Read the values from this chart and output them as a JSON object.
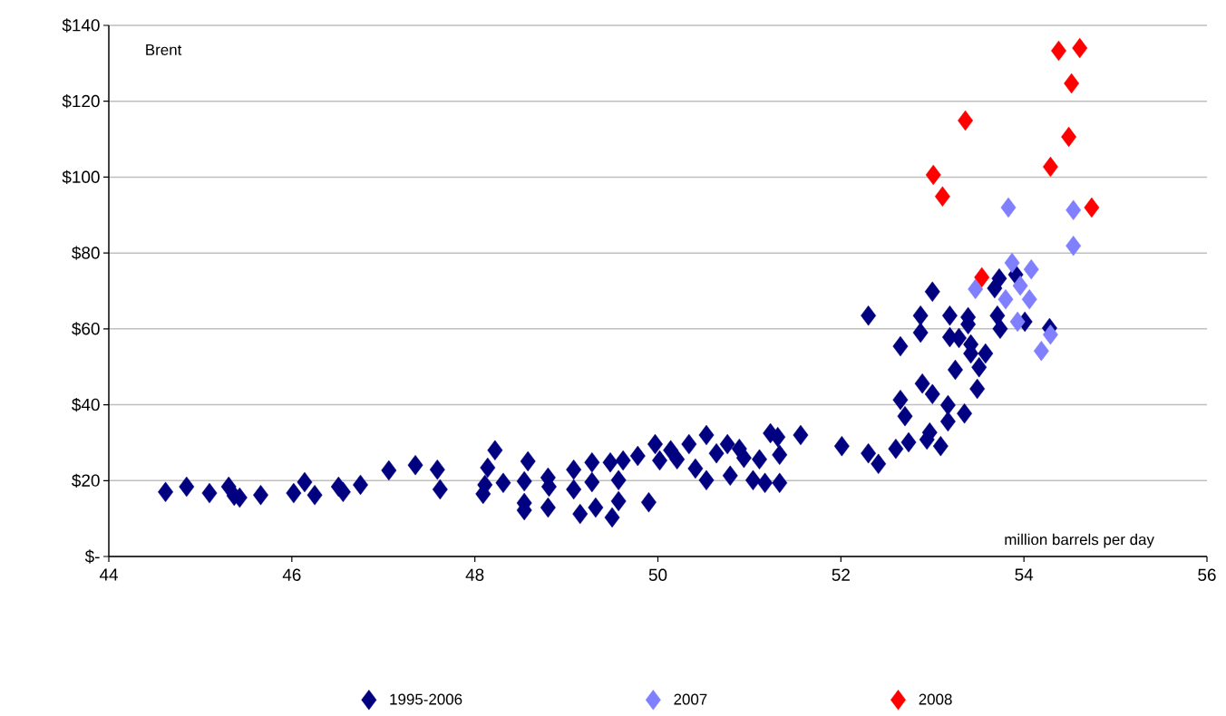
{
  "chart_data": {
    "type": "scatter",
    "xlabel": "million barrels per day",
    "annotations": [
      "Brent"
    ],
    "xlim": [
      44,
      56
    ],
    "xticks": [
      44,
      46,
      48,
      50,
      52,
      54,
      56
    ],
    "ylim": [
      0,
      140
    ],
    "yticks": [
      {
        "value": 0,
        "label": "$-"
      },
      {
        "value": 20,
        "label": "$20"
      },
      {
        "value": 40,
        "label": "$40"
      },
      {
        "value": 60,
        "label": "$60"
      },
      {
        "value": 80,
        "label": "$80"
      },
      {
        "value": 100,
        "label": "$100"
      },
      {
        "value": 120,
        "label": "$120"
      },
      {
        "value": 140,
        "label": "$140"
      }
    ],
    "grid": "y",
    "legend": "bottom",
    "marker": "diamond",
    "series": [
      {
        "name": "1995-2006",
        "color": "#000080",
        "x": [
          44.62,
          44.85,
          45.1,
          45.31,
          45.37,
          45.43,
          45.66,
          46.02,
          46.14,
          46.25,
          46.51,
          46.56,
          46.75,
          47.06,
          47.35,
          47.59,
          47.62,
          48.09,
          48.11,
          48.14,
          48.22,
          48.31,
          48.54,
          48.54,
          48.54,
          48.58,
          48.8,
          48.81,
          48.8,
          49.08,
          49.08,
          49.15,
          49.28,
          49.28,
          49.32,
          49.48,
          49.57,
          49.57,
          49.5,
          49.62,
          49.78,
          49.9,
          49.97,
          50.02,
          50.14,
          50.21,
          50.34,
          50.41,
          50.53,
          50.53,
          50.64,
          50.76,
          50.79,
          50.89,
          50.94,
          51.11,
          51.04,
          51.17,
          51.23,
          51.31,
          51.33,
          51.33,
          51.56,
          52.01,
          52.3,
          52.41,
          52.3,
          53.0,
          52.87,
          52.87,
          52.65,
          53.19,
          53.39,
          53.39,
          53.19,
          53.29,
          53.42,
          53.42,
          53.58,
          53.51,
          53.25,
          53.49,
          53.71,
          53.74,
          54.01,
          54.28,
          53.73,
          53.68,
          53.91,
          52.89,
          53.0,
          52.65,
          52.7,
          53.17,
          53.17,
          53.35,
          52.97,
          52.94,
          53.09,
          52.74,
          52.6
        ],
        "values": [
          17.0,
          18.4,
          16.7,
          18.4,
          16.0,
          15.5,
          16.2,
          16.7,
          19.6,
          16.2,
          18.4,
          17.0,
          18.9,
          22.7,
          24.1,
          22.9,
          17.7,
          16.5,
          18.9,
          23.4,
          28.0,
          19.4,
          12.2,
          14.1,
          19.8,
          25.1,
          20.8,
          18.4,
          12.9,
          22.9,
          17.7,
          11.2,
          24.8,
          19.6,
          12.9,
          24.8,
          20.1,
          14.6,
          10.3,
          25.3,
          26.5,
          14.3,
          29.6,
          25.3,
          28.0,
          25.6,
          29.6,
          23.2,
          32.0,
          20.1,
          27.2,
          29.6,
          21.3,
          28.4,
          26.0,
          25.6,
          20.1,
          19.4,
          32.5,
          31.5,
          26.8,
          19.4,
          32.0,
          29.1,
          27.2,
          24.4,
          63.5,
          69.8,
          63.5,
          59.0,
          55.4,
          63.5,
          63.1,
          61.2,
          57.8,
          57.6,
          55.9,
          53.5,
          53.5,
          49.9,
          49.2,
          44.2,
          63.5,
          60.0,
          61.9,
          60.2,
          73.3,
          70.7,
          74.3,
          45.6,
          42.8,
          41.3,
          37.0,
          39.9,
          35.6,
          37.7,
          32.7,
          30.8,
          29.1,
          30.1,
          28.4
        ]
      },
      {
        "name": "2007",
        "color": "#8080ff",
        "x": [
          53.87,
          54.08,
          53.96,
          53.47,
          53.8,
          54.06,
          53.93,
          54.29,
          54.19,
          53.83,
          54.54,
          54.54
        ],
        "values": [
          77.4,
          75.7,
          71.4,
          70.5,
          67.8,
          67.8,
          61.9,
          58.5,
          54.2,
          92.0,
          91.3,
          81.9
        ]
      },
      {
        "name": "2008",
        "color": "#ff0000",
        "x": [
          54.38,
          54.61,
          54.52,
          53.36,
          54.49,
          54.29,
          53.01,
          53.11,
          54.74,
          53.54
        ],
        "values": [
          133.3,
          134.0,
          124.7,
          114.9,
          110.6,
          102.7,
          100.6,
          94.9,
          92.0,
          73.6
        ]
      }
    ]
  }
}
